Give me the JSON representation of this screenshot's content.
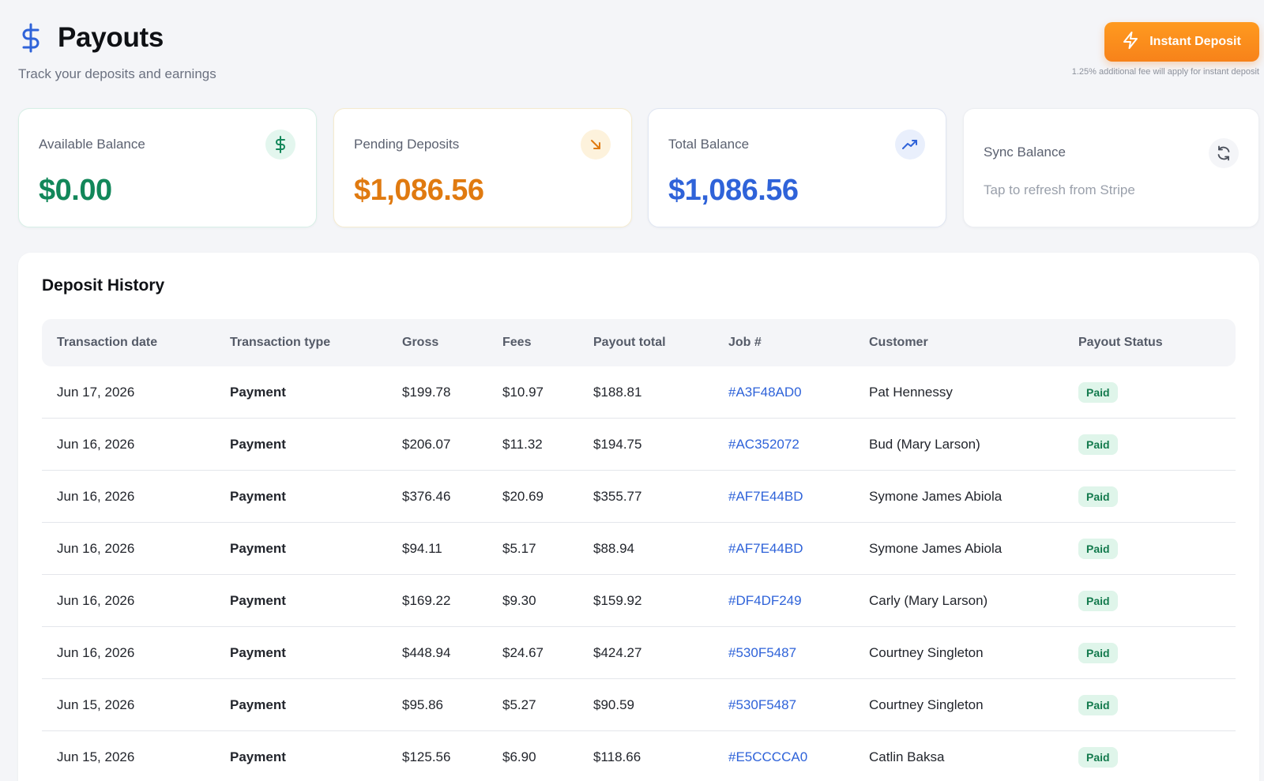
{
  "header": {
    "title": "Payouts",
    "subtitle": "Track your deposits and earnings",
    "icon": "dollar-icon",
    "accent": "#2f63d9"
  },
  "instant_deposit": {
    "label": "Instant Deposit",
    "note": "1.25% additional fee will apply for instant deposit",
    "icon": "lightning-icon",
    "color": "#f7821a"
  },
  "cards": [
    {
      "label": "Available Balance",
      "value": "$0.00",
      "color": "#12875a",
      "icon": "dollar-icon"
    },
    {
      "label": "Pending Deposits",
      "value": "$1,086.56",
      "color": "#e07a10",
      "icon": "arrow-down-right-icon"
    },
    {
      "label": "Total Balance",
      "value": "$1,086.56",
      "color": "#2f63d9",
      "icon": "trend-up-icon"
    },
    {
      "label": "Sync Balance",
      "subtext": "Tap to refresh from Stripe",
      "icon": "refresh-icon"
    }
  ],
  "history": {
    "title": "Deposit History",
    "columns": [
      "Transaction date",
      "Transaction type",
      "Gross",
      "Fees",
      "Payout total",
      "Job #",
      "Customer",
      "Payout Status"
    ],
    "rows": [
      {
        "date": "Jun 17, 2026",
        "type": "Payment",
        "gross": "$199.78",
        "fees": "$10.97",
        "total": "$188.81",
        "job": "#A3F48AD0",
        "customer": "Pat Hennessy",
        "status": "Paid"
      },
      {
        "date": "Jun 16, 2026",
        "type": "Payment",
        "gross": "$206.07",
        "fees": "$11.32",
        "total": "$194.75",
        "job": "#AC352072",
        "customer": "Bud (Mary Larson)",
        "status": "Paid"
      },
      {
        "date": "Jun 16, 2026",
        "type": "Payment",
        "gross": "$376.46",
        "fees": "$20.69",
        "total": "$355.77",
        "job": "#AF7E44BD",
        "customer": "Symone James Abiola",
        "status": "Paid"
      },
      {
        "date": "Jun 16, 2026",
        "type": "Payment",
        "gross": "$94.11",
        "fees": "$5.17",
        "total": "$88.94",
        "job": "#AF7E44BD",
        "customer": "Symone James Abiola",
        "status": "Paid"
      },
      {
        "date": "Jun 16, 2026",
        "type": "Payment",
        "gross": "$169.22",
        "fees": "$9.30",
        "total": "$159.92",
        "job": "#DF4DF249",
        "customer": "Carly (Mary Larson)",
        "status": "Paid"
      },
      {
        "date": "Jun 16, 2026",
        "type": "Payment",
        "gross": "$448.94",
        "fees": "$24.67",
        "total": "$424.27",
        "job": "#530F5487",
        "customer": "Courtney Singleton",
        "status": "Paid"
      },
      {
        "date": "Jun 15, 2026",
        "type": "Payment",
        "gross": "$95.86",
        "fees": "$5.27",
        "total": "$90.59",
        "job": "#530F5487",
        "customer": "Courtney Singleton",
        "status": "Paid"
      },
      {
        "date": "Jun 15, 2026",
        "type": "Payment",
        "gross": "$125.56",
        "fees": "$6.90",
        "total": "$118.66",
        "job": "#E5CCCCA0",
        "customer": "Catlin Baksa",
        "status": "Paid"
      }
    ]
  }
}
